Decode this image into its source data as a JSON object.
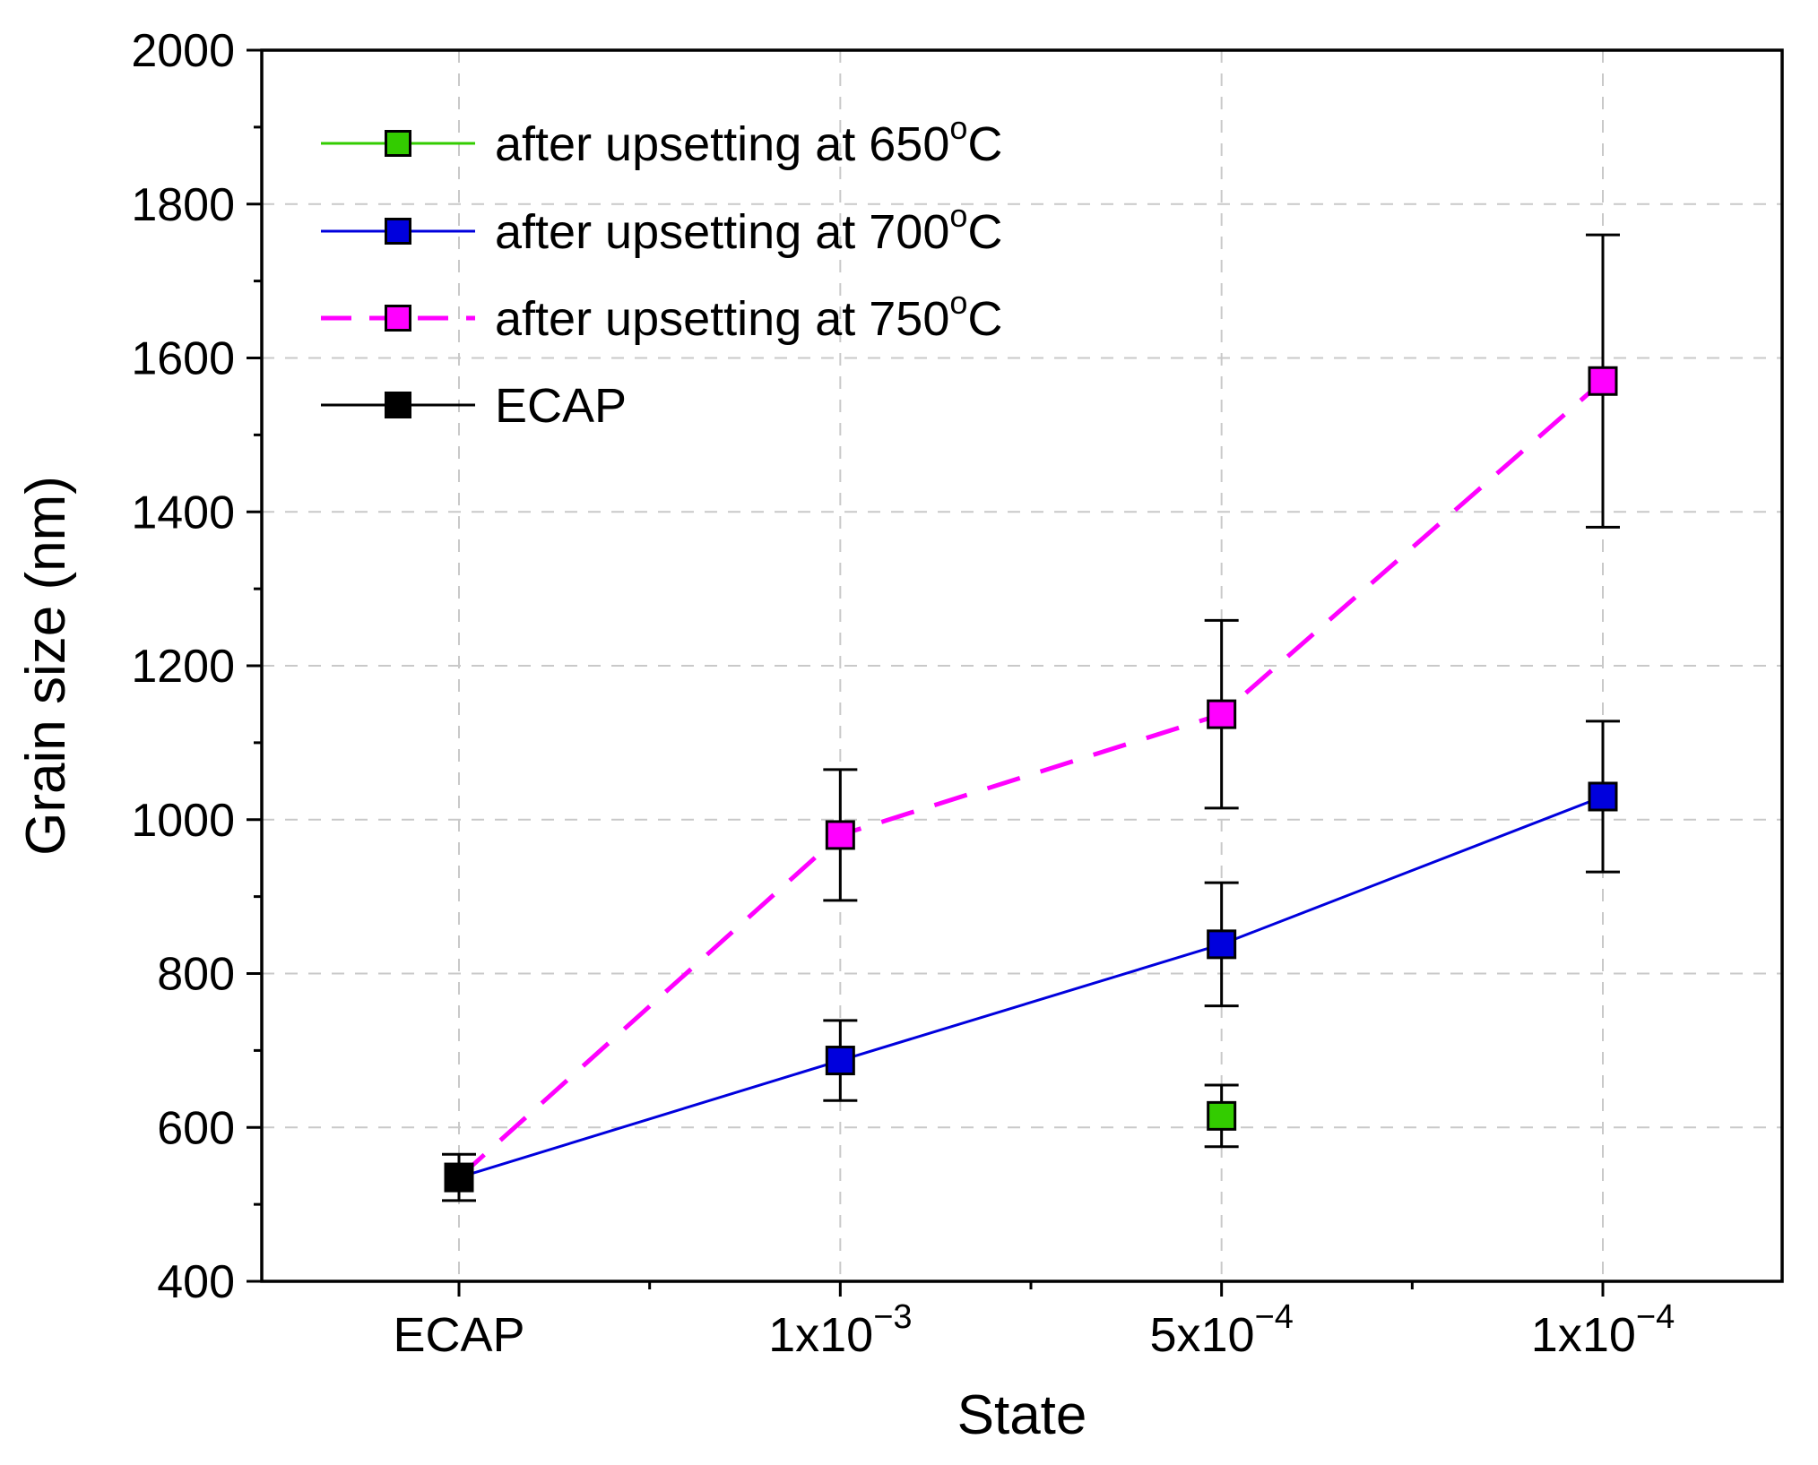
{
  "chart_data": {
    "type": "line",
    "title": "",
    "xlabel": "State",
    "ylabel": "Grain size (nm)",
    "ylim": [
      400,
      2000
    ],
    "y_major_step": 200,
    "y_minor_step": 100,
    "grid": true,
    "grid_style": "dashed",
    "legend_position": "top-left",
    "categories": [
      {
        "base": "ECAP",
        "sup": ""
      },
      {
        "base": "1x10",
        "sup": "-3"
      },
      {
        "base": "5x10",
        "sup": "-4"
      },
      {
        "base": "1x10",
        "sup": "-4"
      }
    ],
    "series": [
      {
        "name": "after upsetting at 650oC",
        "name_parts": {
          "text": "after upsetting at 650",
          "sup": "o",
          "after": "C"
        },
        "color": "#33cc00",
        "line": "solid",
        "marker": "square",
        "line_points": [],
        "points": [
          {
            "x": 2,
            "y": 615,
            "err": 40
          }
        ]
      },
      {
        "name": "after upsetting at 700oC",
        "name_parts": {
          "text": "after upsetting at 700",
          "sup": "o",
          "after": "C"
        },
        "color": "#0000dd",
        "line": "solid",
        "marker": "square",
        "line_points": [
          {
            "x": 0,
            "y": 535
          },
          {
            "x": 1,
            "y": 687
          },
          {
            "x": 2,
            "y": 838
          },
          {
            "x": 3,
            "y": 1030
          }
        ],
        "points": [
          {
            "x": 1,
            "y": 687,
            "err": 52
          },
          {
            "x": 2,
            "y": 838,
            "err": 80
          },
          {
            "x": 3,
            "y": 1030,
            "err": 98
          }
        ]
      },
      {
        "name": "after upsetting at 750oC",
        "name_parts": {
          "text": "after upsetting at 750",
          "sup": "o",
          "after": "C"
        },
        "color": "#ff00ff",
        "line": "dashed",
        "marker": "square",
        "line_points": [
          {
            "x": 0,
            "y": 535
          },
          {
            "x": 1,
            "y": 980
          },
          {
            "x": 2,
            "y": 1137
          },
          {
            "x": 3,
            "y": 1570
          }
        ],
        "points": [
          {
            "x": 1,
            "y": 980,
            "err": 85
          },
          {
            "x": 2,
            "y": 1137,
            "err": 122
          },
          {
            "x": 3,
            "y": 1570,
            "err": 190
          }
        ]
      },
      {
        "name": "ECAP",
        "name_parts": {
          "text": "ECAP",
          "sup": "",
          "after": ""
        },
        "color": "#000000",
        "line": "solid",
        "marker": "square",
        "line_points": [],
        "points": [
          {
            "x": 0,
            "y": 535,
            "err": 30
          }
        ]
      }
    ],
    "error_bar_color": "#000000",
    "grid_color": "#c9c9c9"
  }
}
